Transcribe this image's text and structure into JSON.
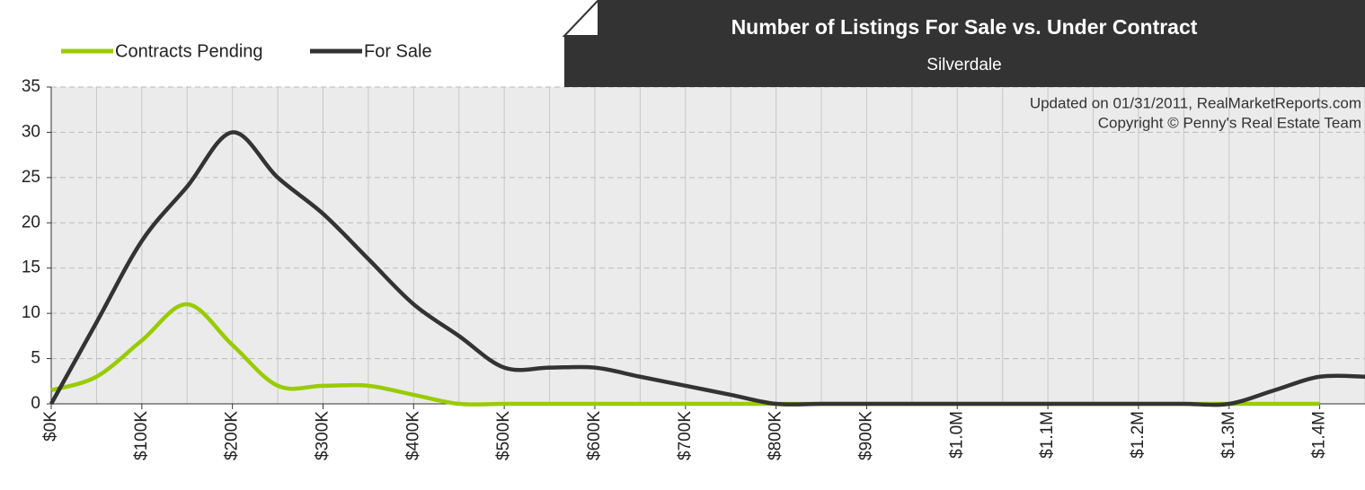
{
  "chart_data": {
    "type": "line",
    "title": "Number of Listings For Sale vs. Under Contract",
    "subtitle": "Silverdale",
    "annotations": [
      "Updated on 01/31/2011, RealMarketReports.com",
      "Copyright © Penny's Real Estate Team"
    ],
    "x": [
      0,
      50,
      100,
      150,
      200,
      250,
      300,
      350,
      400,
      450,
      500,
      550,
      600,
      650,
      700,
      750,
      800,
      850,
      900,
      950,
      1000,
      1050,
      1100,
      1150,
      1200,
      1250,
      1300,
      1350,
      1400,
      1450
    ],
    "series": [
      {
        "name": "Contracts Pending",
        "color": "#99cc00",
        "values": [
          1.5,
          3,
          7,
          11,
          6.5,
          2,
          2,
          2,
          1,
          0,
          0,
          0,
          0,
          0,
          0,
          0,
          0,
          0,
          0,
          0,
          0,
          0,
          0,
          0,
          0,
          0,
          0,
          0,
          0,
          null
        ]
      },
      {
        "name": "For Sale",
        "color": "#333333",
        "values": [
          0,
          9,
          18,
          24,
          30,
          25,
          21,
          16,
          11,
          7.5,
          4,
          4,
          4,
          3,
          2,
          1,
          0,
          0,
          0,
          0,
          0,
          0,
          0,
          0,
          0,
          0,
          0,
          1.5,
          3,
          3
        ]
      }
    ],
    "xlim": [
      0,
      1450
    ],
    "xticks": [
      {
        "value": 0,
        "label": "$0K"
      },
      {
        "value": 100,
        "label": "$100K"
      },
      {
        "value": 200,
        "label": "$200K"
      },
      {
        "value": 300,
        "label": "$300K"
      },
      {
        "value": 400,
        "label": "$400K"
      },
      {
        "value": 500,
        "label": "$500K"
      },
      {
        "value": 600,
        "label": "$600K"
      },
      {
        "value": 700,
        "label": "$700K"
      },
      {
        "value": 800,
        "label": "$800K"
      },
      {
        "value": 900,
        "label": "$900K"
      },
      {
        "value": 1000,
        "label": "$1.0M"
      },
      {
        "value": 1100,
        "label": "$1.1M"
      },
      {
        "value": 1200,
        "label": "$1.2M"
      },
      {
        "value": 1300,
        "label": "$1.3M"
      },
      {
        "value": 1400,
        "label": "$1.4M"
      }
    ],
    "ylim": [
      0,
      35
    ],
    "yticks": [
      0,
      5,
      10,
      15,
      20,
      25,
      30,
      35
    ],
    "grid": true
  }
}
